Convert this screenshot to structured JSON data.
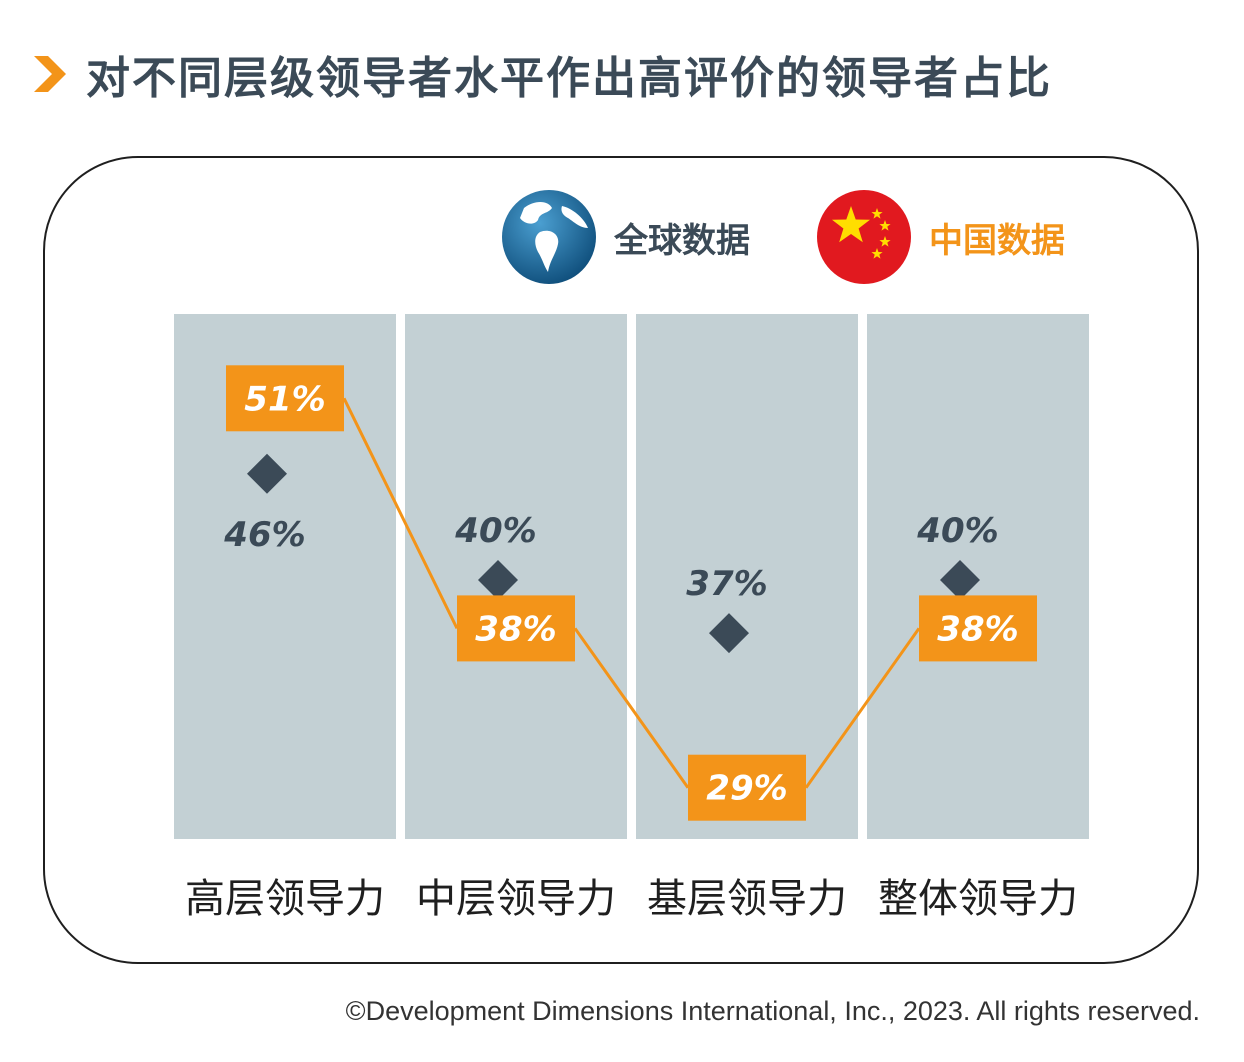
{
  "title": "对不同层级领导者水平作出高评价的领导者占比",
  "legend": {
    "global_label": "全球数据",
    "china_label": "中国数据",
    "global_icon": "globe-icon",
    "china_icon": "china-flag-icon"
  },
  "colors": {
    "accent": "#f39419",
    "dark": "#3b4a57",
    "column_bg": "#c3d0d4"
  },
  "chart_data": {
    "type": "line",
    "categories": [
      "高层领导力",
      "中层领导力",
      "基层领导力",
      "整体领导力"
    ],
    "series": [
      {
        "name": "全球数据",
        "values": [
          46,
          40,
          37,
          40
        ],
        "labels": [
          "46%",
          "40%",
          "37%",
          "40%"
        ],
        "marker": "diamond",
        "line": false
      },
      {
        "name": "中国数据",
        "values": [
          51,
          38,
          29,
          38
        ],
        "labels": [
          "51%",
          "38%",
          "29%",
          "38%"
        ],
        "marker": "label-box",
        "line": true
      }
    ]
  },
  "copyright": "©Development Dimensions International, Inc., 2023. All rights reserved."
}
